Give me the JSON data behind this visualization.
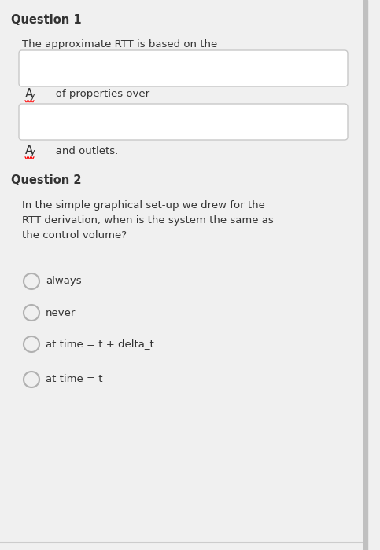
{
  "bg_color": "#f0f0f0",
  "panel_color": "#ffffff",
  "border_color": "#c8c8c8",
  "text_color": "#333333",
  "q1_title": "Question 1",
  "q1_text": "The approximate RTT is based on the",
  "q1_mid_text": "   of properties over",
  "q1_end_text": "   and outlets.",
  "q2_title": "Question 2",
  "q2_text": "In the simple graphical set-up we drew for the\nRTT derivation, when is the system the same as\nthe control volume?",
  "q2_options": [
    "always",
    "never",
    "at time = t + delta_t",
    "at time = t"
  ],
  "divider_color": "#cccccc",
  "right_bar_color": "#c0c0c0",
  "title_fontsize": 10.5,
  "body_fontsize": 9.5,
  "option_fontsize": 9.5,
  "ay_fontsize": 11
}
